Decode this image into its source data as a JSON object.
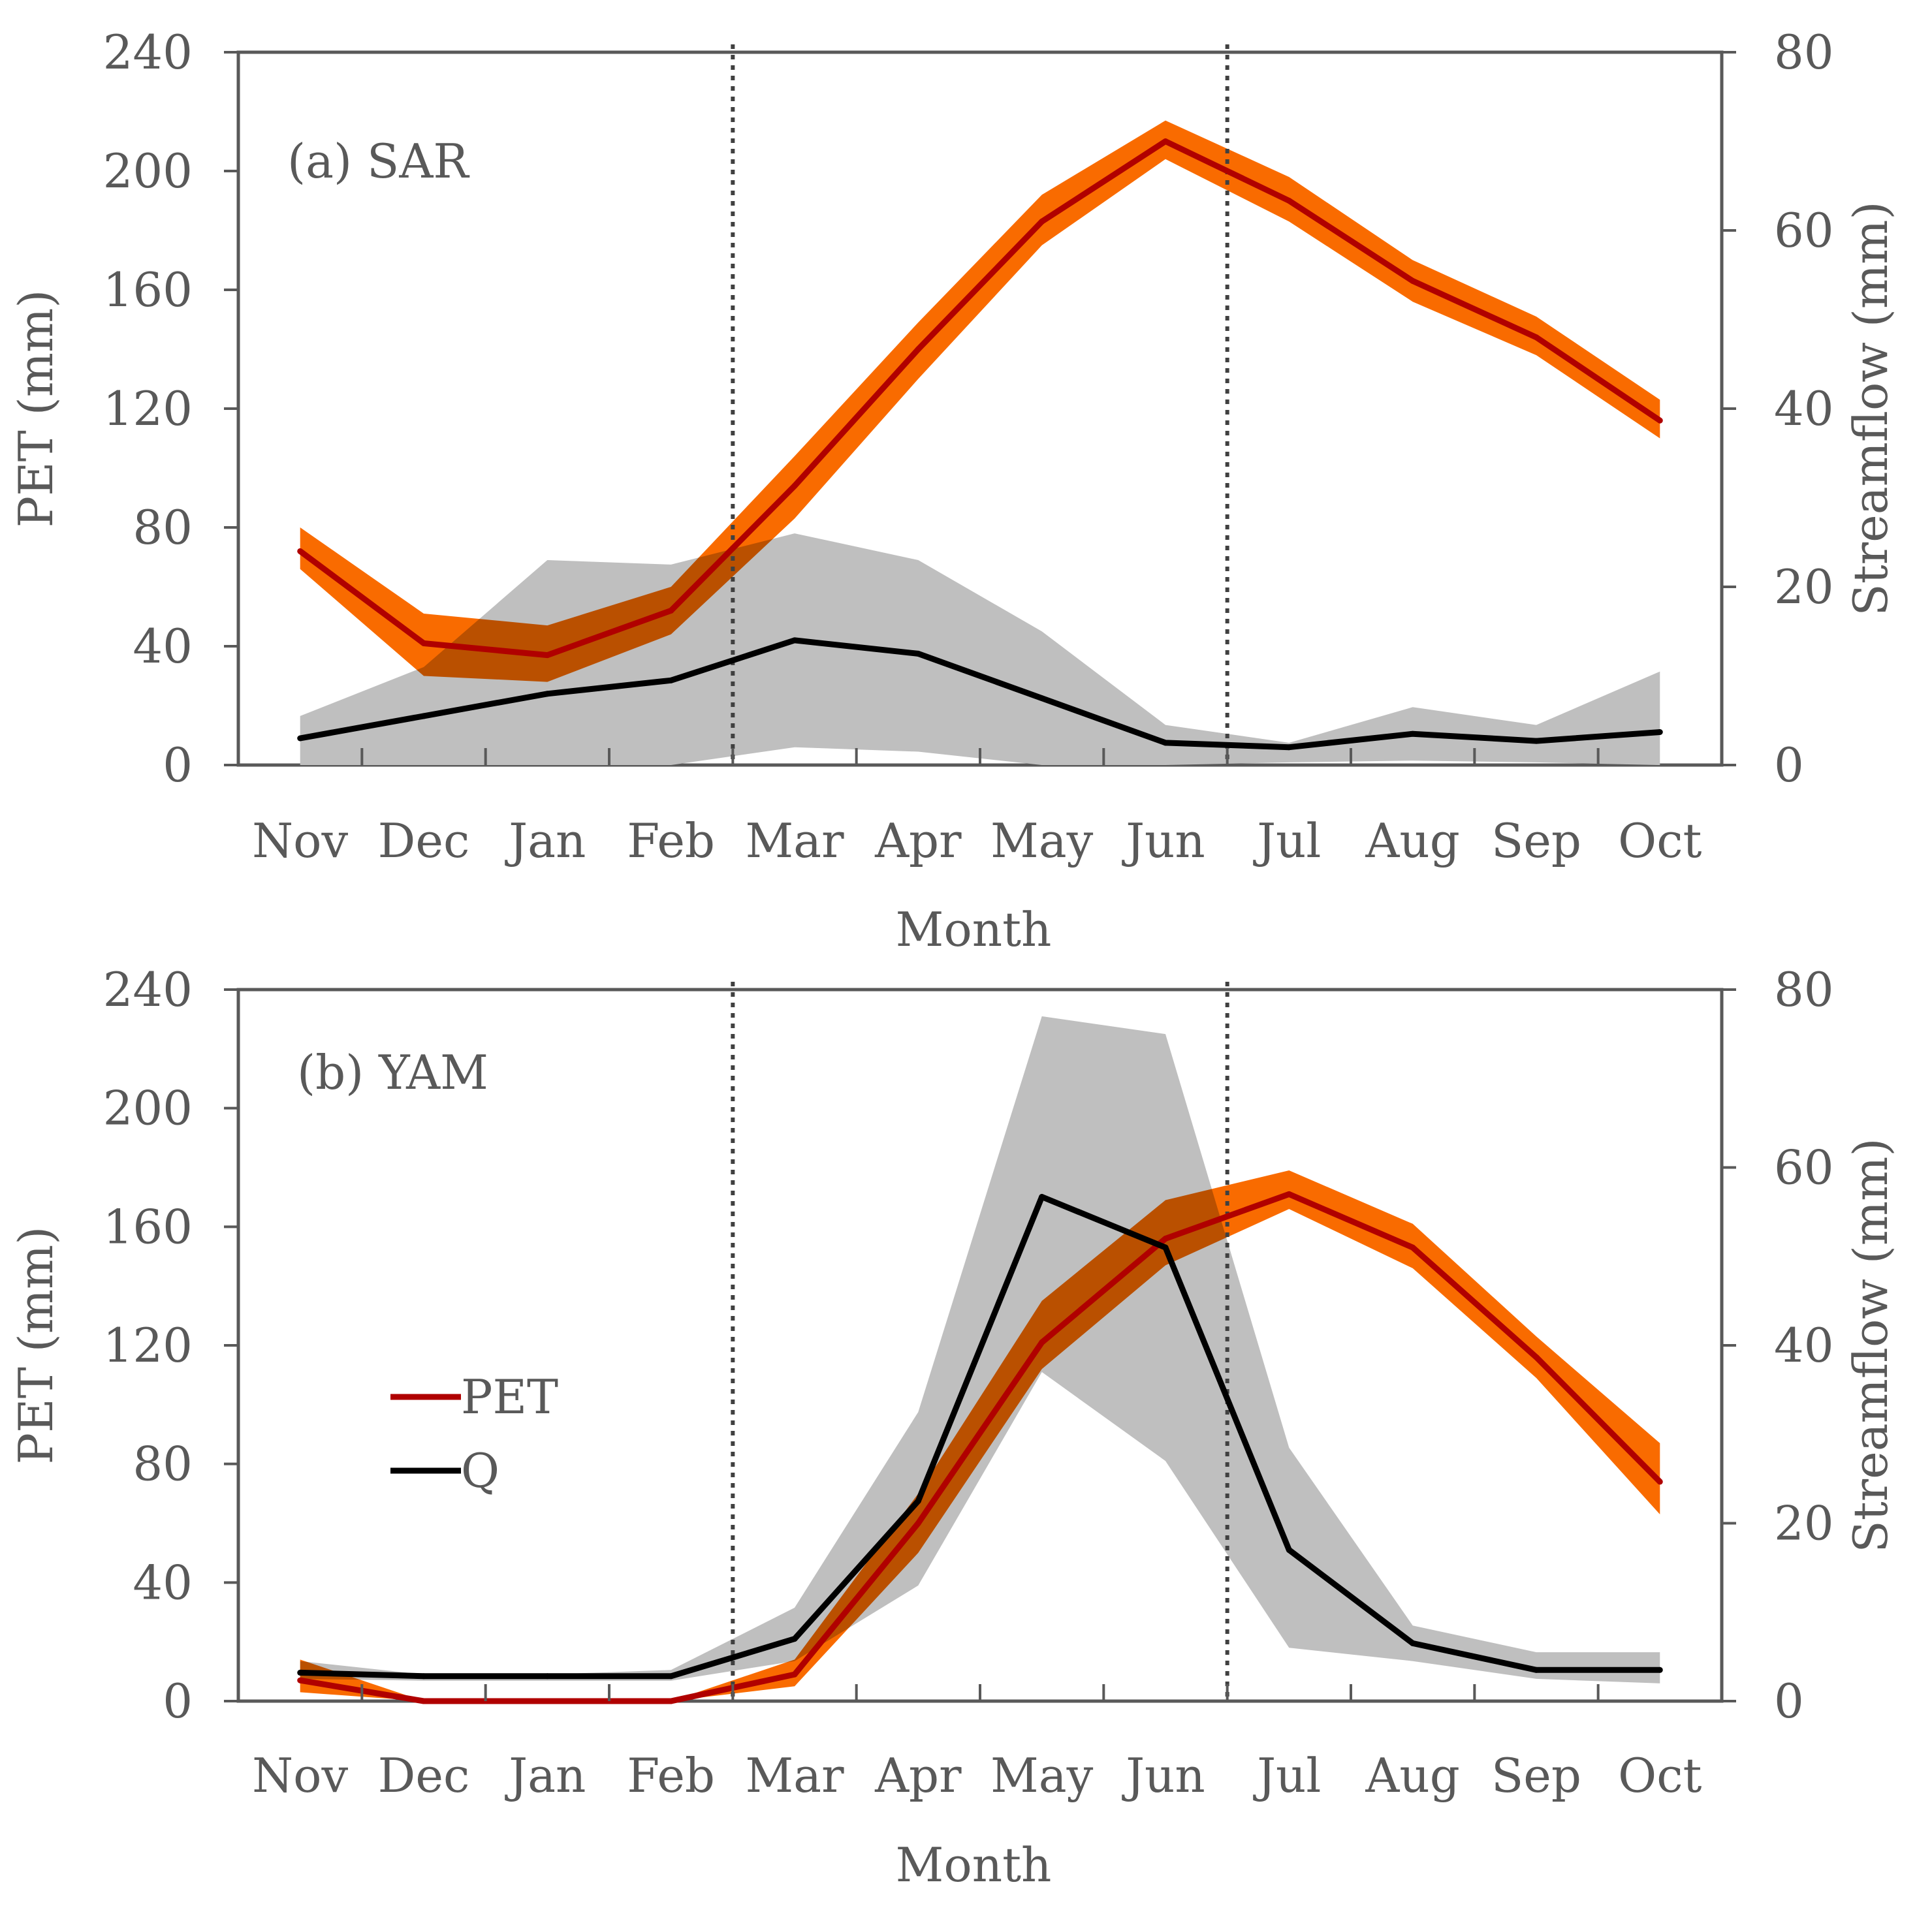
{
  "chart_data": [
    {
      "type": "line",
      "title": "(a) SAR",
      "xlabel": "Month",
      "ylabel": "PET (mm)",
      "y2label": "Streamflow (mm)",
      "categories": [
        "Nov",
        "Dec",
        "Jan",
        "Feb",
        "Mar",
        "Apr",
        "May",
        "Jun",
        "Jul",
        "Aug",
        "Sep",
        "Oct"
      ],
      "ylim": [
        0,
        240
      ],
      "y2lim": [
        0,
        80
      ],
      "yticks": [
        "0",
        "40",
        "80",
        "120",
        "160",
        "200",
        "240"
      ],
      "y2ticks": [
        "0",
        "20",
        "40",
        "60",
        "80"
      ],
      "grid": false,
      "vlines_after_category_index": [
        3,
        7
      ],
      "series": [
        {
          "name": "PET",
          "axis": "left",
          "color": "#b00000",
          "band_color": "#f96b00",
          "values": [
            72,
            41,
            37,
            52,
            94,
            140,
            183,
            210,
            190,
            163,
            144,
            116
          ],
          "lower": [
            66,
            30,
            28,
            44,
            83,
            130,
            175,
            204,
            183,
            156,
            138,
            110
          ],
          "upper": [
            80,
            51,
            47,
            60,
            104,
            149,
            192,
            217,
            198,
            170,
            151,
            123
          ]
        },
        {
          "name": "Q",
          "axis": "right",
          "color": "#000000",
          "band_color": "#bfbfbf",
          "values": [
            3,
            5.5,
            8,
            9.5,
            14,
            12.5,
            7.5,
            2.5,
            2,
            3.5,
            2.7,
            3.7
          ],
          "lower": [
            0,
            0,
            0,
            0,
            2,
            1.5,
            0,
            0,
            0.3,
            0.5,
            0.3,
            0
          ],
          "upper": [
            5.5,
            11,
            23,
            22.5,
            26,
            23,
            15,
            4.5,
            2.5,
            6.5,
            4.5,
            10.5
          ]
        }
      ]
    },
    {
      "type": "line",
      "title": "(b) YAM",
      "xlabel": "Month",
      "ylabel": "PET (mm)",
      "y2label": "Streamflow (mm)",
      "categories": [
        "Nov",
        "Dec",
        "Jan",
        "Feb",
        "Mar",
        "Apr",
        "May",
        "Jun",
        "Jul",
        "Aug",
        "Sep",
        "Oct"
      ],
      "ylim": [
        0,
        240
      ],
      "y2lim": [
        0,
        80
      ],
      "yticks": [
        "0",
        "40",
        "80",
        "120",
        "160",
        "200",
        "240"
      ],
      "y2ticks": [
        "0",
        "20",
        "40",
        "60",
        "80"
      ],
      "grid": false,
      "vlines_after_category_index": [
        3,
        7
      ],
      "legend": {
        "placement": "center-left",
        "entries": [
          "PET",
          "Q"
        ]
      },
      "series": [
        {
          "name": "PET",
          "axis": "left",
          "color": "#b00000",
          "band_color": "#f96b00",
          "values": [
            7,
            0,
            0,
            0,
            9,
            60,
            121,
            156,
            171,
            153,
            116,
            74
          ],
          "lower": [
            3,
            0,
            0,
            0,
            5,
            50,
            112,
            147,
            166,
            146,
            109,
            63
          ],
          "upper": [
            14,
            0,
            0,
            0,
            14,
            70,
            135,
            169,
            179,
            161,
            123,
            87
          ]
        },
        {
          "name": "Q",
          "axis": "right",
          "color": "#000000",
          "band_color": "#bfbfbf",
          "values": [
            3.2,
            2.8,
            2.8,
            2.8,
            7,
            22.5,
            56.7,
            51,
            17,
            6.5,
            3.5,
            3.5
          ],
          "lower": [
            2.5,
            2.3,
            2.3,
            2.3,
            4.5,
            13,
            37,
            27,
            6,
            4.5,
            2.5,
            2
          ],
          "upper": [
            4.5,
            3,
            3,
            3.5,
            10.5,
            32.5,
            77,
            75,
            28.5,
            8.5,
            5.5,
            5.5
          ]
        }
      ]
    }
  ]
}
